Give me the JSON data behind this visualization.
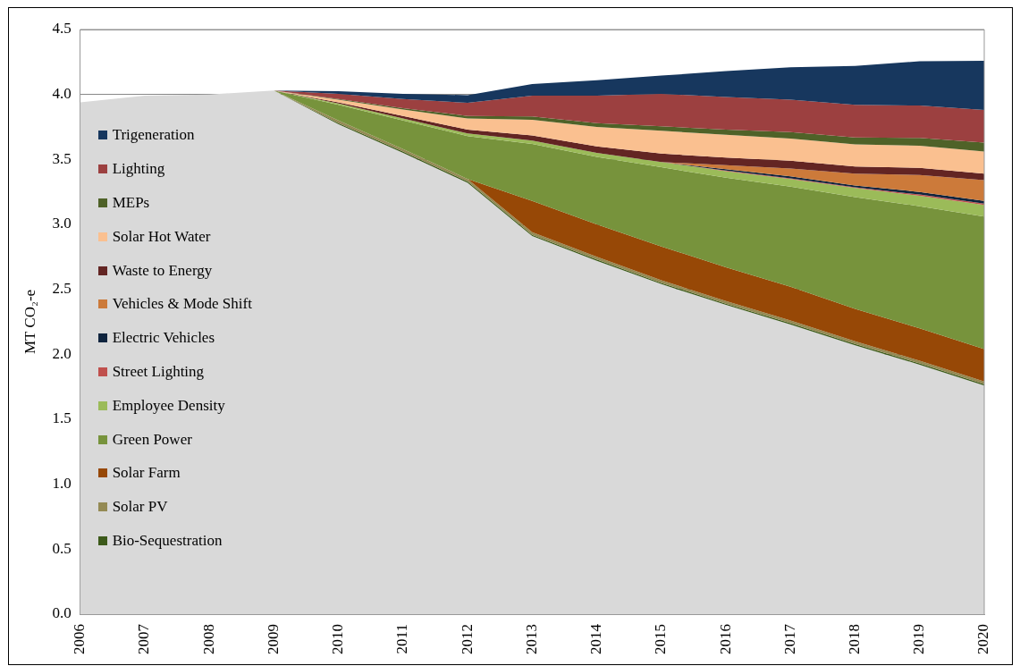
{
  "chart_data": {
    "type": "area",
    "stacked": true,
    "ylabel": "MT CO₂-e",
    "categories": [
      "2006",
      "2007",
      "2008",
      "2009",
      "2010",
      "2011",
      "2012",
      "2013",
      "2014",
      "2015",
      "2016",
      "2017",
      "2018",
      "2019",
      "2020"
    ],
    "ylim": [
      0,
      4.5
    ],
    "yticks": [
      {
        "value": 0,
        "label": "0.0"
      },
      {
        "value": 0.5,
        "label": "0.5"
      },
      {
        "value": 1,
        "label": "1.0"
      },
      {
        "value": 1.5,
        "label": "1.5"
      },
      {
        "value": 2,
        "label": "2.0"
      },
      {
        "value": 2.5,
        "label": "2.5"
      },
      {
        "value": 3,
        "label": "3.0"
      },
      {
        "value": 3.5,
        "label": "3.5"
      },
      {
        "value": 4,
        "label": "4.0"
      },
      {
        "value": 4.5,
        "label": "4.5"
      }
    ],
    "grid": "y",
    "legend": "left",
    "marker": "none",
    "series": [
      {
        "color": "#d9d9d9",
        "values": [
          3.94,
          3.99,
          4.0,
          4.03,
          3.77,
          3.55,
          3.32,
          2.91,
          2.72,
          2.54,
          2.38,
          2.23,
          2.07,
          1.92,
          1.76
        ]
      },
      {
        "name": "Bio-Sequestration",
        "color": "#3c5a1a",
        "values": [
          0,
          0,
          0,
          0,
          0.01,
          0.01,
          0.01,
          0.01,
          0.01,
          0.01,
          0.01,
          0.01,
          0.01,
          0.01,
          0.01
        ]
      },
      {
        "name": "Solar PV",
        "color": "#948a54",
        "values": [
          0,
          0,
          0,
          0,
          0.02,
          0.02,
          0.02,
          0.02,
          0.02,
          0.02,
          0.02,
          0.02,
          0.02,
          0.02,
          0.02
        ]
      },
      {
        "name": "Solar Farm",
        "color": "#974806",
        "values": [
          0,
          0,
          0,
          0,
          0,
          0,
          0,
          0.24,
          0.25,
          0.26,
          0.26,
          0.26,
          0.25,
          0.25,
          0.25
        ]
      },
      {
        "name": "Green Power",
        "color": "#77933c",
        "values": [
          0,
          0,
          0,
          0,
          0.12,
          0.22,
          0.33,
          0.44,
          0.52,
          0.61,
          0.69,
          0.77,
          0.86,
          0.94,
          1.02
        ]
      },
      {
        "name": "Employee Density",
        "color": "#9bbb59",
        "values": [
          0,
          0,
          0,
          0,
          0.01,
          0.015,
          0.02,
          0.025,
          0.03,
          0.04,
          0.05,
          0.06,
          0.07,
          0.08,
          0.09
        ]
      },
      {
        "name": "Street Lighting",
        "color": "#c0504d",
        "values": [
          0,
          0,
          0,
          0,
          0,
          0,
          0,
          0,
          0,
          0,
          0.005,
          0.005,
          0.005,
          0.01,
          0.01
        ]
      },
      {
        "name": "Electric Vehicles",
        "color": "#0f243e",
        "values": [
          0,
          0,
          0,
          0,
          0,
          0,
          0,
          0,
          0,
          0,
          0.01,
          0.015,
          0.015,
          0.02,
          0.02
        ]
      },
      {
        "name": "Vehicles & Mode Shift",
        "color": "#cc7a3a",
        "values": [
          0,
          0,
          0,
          0,
          0,
          0,
          0,
          0,
          0,
          0,
          0.03,
          0.06,
          0.09,
          0.13,
          0.16
        ]
      },
      {
        "name": "Waste to Energy",
        "color": "#632523",
        "values": [
          0,
          0,
          0,
          0,
          0.01,
          0.02,
          0.03,
          0.04,
          0.05,
          0.065,
          0.06,
          0.06,
          0.055,
          0.055,
          0.05
        ]
      },
      {
        "name": "Solar Hot Water",
        "color": "#fac090",
        "values": [
          0,
          0,
          0,
          0,
          0.02,
          0.05,
          0.085,
          0.12,
          0.15,
          0.175,
          0.175,
          0.17,
          0.17,
          0.17,
          0.17
        ]
      },
      {
        "name": "MEPs",
        "color": "#4f6228",
        "values": [
          0,
          0,
          0,
          0,
          0.005,
          0.01,
          0.02,
          0.025,
          0.03,
          0.035,
          0.04,
          0.05,
          0.055,
          0.06,
          0.07
        ]
      },
      {
        "name": "Lighting",
        "color": "#9c4040",
        "values": [
          0,
          0,
          0,
          0,
          0.04,
          0.07,
          0.1,
          0.16,
          0.21,
          0.25,
          0.25,
          0.25,
          0.25,
          0.25,
          0.25
        ]
      },
      {
        "name": "Trigeneration",
        "color": "#17375e",
        "values": [
          0,
          0,
          0,
          0,
          0.02,
          0.04,
          0.06,
          0.09,
          0.12,
          0.14,
          0.2,
          0.25,
          0.3,
          0.34,
          0.38
        ]
      }
    ]
  }
}
